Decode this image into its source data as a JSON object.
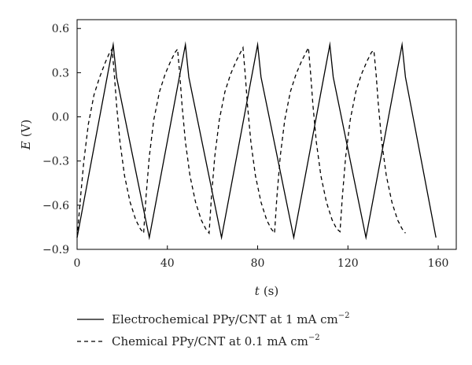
{
  "chart_data": {
    "type": "line",
    "xlabel_var": "t",
    "xlabel_unit": "(s)",
    "ylabel_var": "E",
    "ylabel_unit": "(V)",
    "xlim": [
      0,
      168
    ],
    "ylim": [
      -0.9,
      0.66
    ],
    "xticks": [
      0,
      40,
      80,
      120,
      160
    ],
    "yticks": [
      -0.9,
      -0.6,
      -0.3,
      0.0,
      0.3,
      0.6
    ],
    "xtick_labels": [
      "0",
      "40",
      "80",
      "120",
      "160"
    ],
    "ytick_labels": [
      "−0.9",
      "−0.6",
      "−0.3",
      "0.0",
      "0.3",
      "0.6"
    ],
    "grid": false,
    "legend_position": "below",
    "series": [
      {
        "name": "Electrochemical PPy/CNT at 1 mA cm",
        "name_sup": "−2",
        "style": "solid",
        "color": "#000000",
        "points": [
          [
            0,
            -0.82
          ],
          [
            16,
            0.49
          ],
          [
            17.5,
            0.27
          ],
          [
            32,
            -0.82
          ],
          [
            48,
            0.49
          ],
          [
            49.5,
            0.27
          ],
          [
            64,
            -0.82
          ],
          [
            80,
            0.49
          ],
          [
            81.5,
            0.27
          ],
          [
            96,
            -0.82
          ],
          [
            112,
            0.49
          ],
          [
            113.5,
            0.27
          ],
          [
            128,
            -0.82
          ],
          [
            144,
            0.49
          ],
          [
            145.5,
            0.27
          ],
          [
            159,
            -0.82
          ]
        ]
      },
      {
        "name": "Chemical PPy/CNT at 0.1 mA cm",
        "name_sup": "−2",
        "style": "dashed",
        "color": "#000000",
        "points": [
          [
            0,
            -0.82
          ],
          [
            1.5,
            -0.55
          ],
          [
            3,
            -0.3
          ],
          [
            5,
            -0.05
          ],
          [
            7.5,
            0.15
          ],
          [
            10,
            0.27
          ],
          [
            12.5,
            0.37
          ],
          [
            14.5,
            0.44
          ],
          [
            15.5,
            0.46
          ],
          [
            16.5,
            0.29
          ],
          [
            17.5,
            0.08
          ],
          [
            19,
            -0.17
          ],
          [
            21,
            -0.4
          ],
          [
            23.5,
            -0.58
          ],
          [
            26,
            -0.7
          ],
          [
            28,
            -0.76
          ],
          [
            29.5,
            -0.79
          ],
          [
            30.5,
            -0.55
          ],
          [
            32,
            -0.27
          ],
          [
            34,
            -0.02
          ],
          [
            36.5,
            0.17
          ],
          [
            39,
            0.29
          ],
          [
            41.5,
            0.38
          ],
          [
            43.5,
            0.44
          ],
          [
            44.5,
            0.46
          ],
          [
            45.5,
            0.29
          ],
          [
            46.5,
            0.08
          ],
          [
            48,
            -0.17
          ],
          [
            50,
            -0.4
          ],
          [
            52.5,
            -0.58
          ],
          [
            55,
            -0.7
          ],
          [
            57,
            -0.76
          ],
          [
            58.5,
            -0.79
          ],
          [
            59.5,
            -0.55
          ],
          [
            61,
            -0.27
          ],
          [
            63,
            -0.02
          ],
          [
            65.5,
            0.17
          ],
          [
            68,
            0.29
          ],
          [
            70.5,
            0.38
          ],
          [
            72.5,
            0.44
          ],
          [
            73.5,
            0.47
          ],
          [
            74.5,
            0.29
          ],
          [
            75.5,
            0.08
          ],
          [
            77,
            -0.17
          ],
          [
            79,
            -0.4
          ],
          [
            81.5,
            -0.58
          ],
          [
            84,
            -0.7
          ],
          [
            86,
            -0.76
          ],
          [
            87.5,
            -0.79
          ],
          [
            88.5,
            -0.55
          ],
          [
            90,
            -0.27
          ],
          [
            92,
            -0.02
          ],
          [
            94.5,
            0.17
          ],
          [
            97,
            0.29
          ],
          [
            99.5,
            0.38
          ],
          [
            101.5,
            0.44
          ],
          [
            102.5,
            0.47
          ],
          [
            103.5,
            0.29
          ],
          [
            104.5,
            0.08
          ],
          [
            106,
            -0.17
          ],
          [
            108,
            -0.4
          ],
          [
            110.5,
            -0.58
          ],
          [
            113,
            -0.7
          ],
          [
            115,
            -0.76
          ],
          [
            116.5,
            -0.78
          ],
          [
            117.5,
            -0.55
          ],
          [
            119,
            -0.27
          ],
          [
            121,
            -0.02
          ],
          [
            123.5,
            0.17
          ],
          [
            126,
            0.29
          ],
          [
            128.5,
            0.38
          ],
          [
            130.5,
            0.44
          ],
          [
            131.5,
            0.45
          ],
          [
            132.5,
            0.29
          ],
          [
            133.5,
            0.08
          ],
          [
            135,
            -0.17
          ],
          [
            137,
            -0.4
          ],
          [
            139.5,
            -0.58
          ],
          [
            142,
            -0.7
          ],
          [
            144,
            -0.76
          ],
          [
            145.5,
            -0.79
          ]
        ]
      }
    ]
  }
}
